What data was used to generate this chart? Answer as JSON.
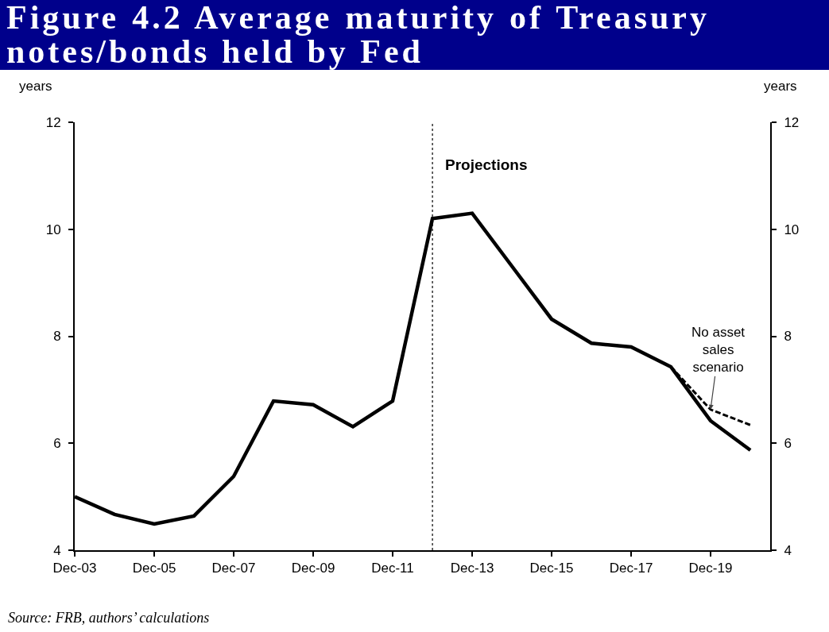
{
  "chart_data": {
    "type": "line",
    "title": "Figure 4.2 Average maturity of Treasury notes/bonds held by Fed",
    "ylabel": "years",
    "y2label": "years",
    "x": [
      "2003-12",
      "2004-12",
      "2005-12",
      "2006-12",
      "2007-12",
      "2008-12",
      "2009-12",
      "2010-12",
      "2011-12",
      "2012-12",
      "2013-12",
      "2014-12",
      "2015-12",
      "2016-12",
      "2017-12",
      "2018-12",
      "2019-12",
      "2020-12"
    ],
    "series": [
      {
        "color": "#000000",
        "line_style": "solid",
        "values": [
          5.0,
          4.67,
          4.49,
          4.64,
          5.38,
          6.79,
          6.72,
          6.31,
          6.79,
          10.2,
          10.3,
          9.31,
          8.32,
          7.87,
          7.8,
          7.43,
          6.42,
          5.87
        ]
      },
      {
        "color": "#000000",
        "line_style": "dashed",
        "x": [
          "2018-12",
          "2019-12",
          "2020-12"
        ],
        "values": [
          7.43,
          6.63,
          6.34
        ]
      }
    ],
    "xlim": [
      "2003-12",
      "2021-06"
    ],
    "xticks": [
      {
        "value": "2003-12",
        "label": "Dec-03"
      },
      {
        "value": "2005-12",
        "label": "Dec-05"
      },
      {
        "value": "2007-12",
        "label": "Dec-07"
      },
      {
        "value": "2009-12",
        "label": "Dec-09"
      },
      {
        "value": "2011-12",
        "label": "Dec-11"
      },
      {
        "value": "2013-12",
        "label": "Dec-13"
      },
      {
        "value": "2015-12",
        "label": "Dec-15"
      },
      {
        "value": "2017-12",
        "label": "Dec-17"
      },
      {
        "value": "2019-12",
        "label": "Dec-19"
      }
    ],
    "ylim": [
      4,
      12
    ],
    "yticks": [
      4,
      6,
      8,
      10,
      12
    ],
    "y2lim": [
      4,
      12
    ],
    "y2ticks": [
      4,
      6,
      8,
      10,
      12
    ],
    "ref_lines": [
      {
        "axis": "x",
        "value": "2012-12",
        "line_style": "dotted",
        "color": "#000000"
      }
    ],
    "annotations": [
      "Projections",
      {
        "text": "No asset sales scenario",
        "x": "2019-12",
        "y": 6.63
      },
      "Source: FRB, authors’ calculations"
    ],
    "grid": false,
    "marker": "none"
  }
}
